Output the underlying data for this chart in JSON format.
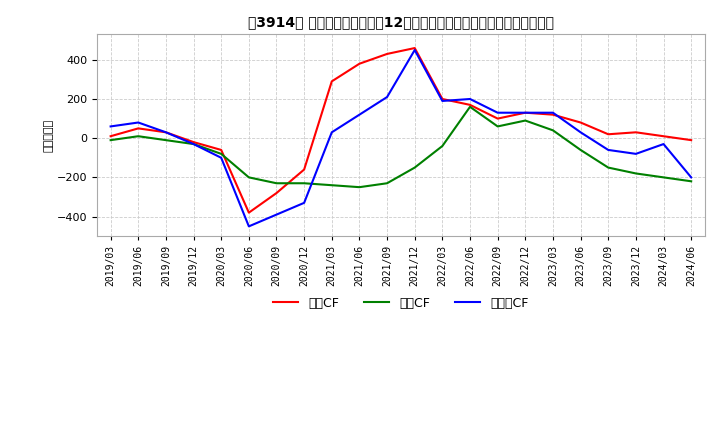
{
  "title": "[㤔]　キャッシュフローの12か月移動合計の対前年同期増減額の推移",
  "title_str": "［3914］ キャッシュフローの12か月移動合計の対前年同期増減額の推移",
  "ylabel": "（百万円）",
  "ylim": [
    -500,
    530
  ],
  "yticks": [
    -400,
    -200,
    0,
    200,
    400
  ],
  "background_color": "#ffffff",
  "grid_color": "#cccccc",
  "dates": [
    "2019/03",
    "2019/06",
    "2019/09",
    "2019/12",
    "2020/03",
    "2020/06",
    "2020/09",
    "2020/12",
    "2021/03",
    "2021/06",
    "2021/09",
    "2021/12",
    "2022/03",
    "2022/06",
    "2022/09",
    "2022/12",
    "2023/03",
    "2023/06",
    "2023/09",
    "2023/12",
    "2024/03",
    "2024/06"
  ],
  "営業CF": [
    10,
    50,
    30,
    -20,
    -60,
    -380,
    -280,
    -160,
    290,
    380,
    430,
    460,
    200,
    170,
    100,
    130,
    120,
    80,
    20,
    30,
    10,
    -10
  ],
  "投資CF": [
    -10,
    10,
    -10,
    -30,
    -80,
    -200,
    -230,
    -230,
    -240,
    -250,
    -230,
    -150,
    -40,
    160,
    60,
    90,
    40,
    -60,
    -150,
    -180,
    -200,
    -220
  ],
  "フリーCF": [
    60,
    80,
    30,
    -30,
    -100,
    -450,
    -390,
    -330,
    30,
    120,
    210,
    450,
    190,
    200,
    130,
    130,
    130,
    30,
    -60,
    -80,
    -30,
    -200
  ],
  "line_colors": {
    "営業CF": "#ff0000",
    "投資CF": "#008000",
    "フリーCF": "#0000ff"
  },
  "legend_labels": [
    "営業CF",
    "投資CF",
    "フリーCF"
  ],
  "line_width": 1.5
}
